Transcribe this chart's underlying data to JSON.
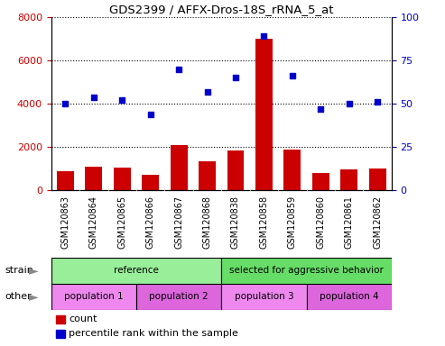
{
  "title": "GDS2399 / AFFX-Dros-18S_rRNA_5_at",
  "samples": [
    "GSM120863",
    "GSM120864",
    "GSM120865",
    "GSM120866",
    "GSM120867",
    "GSM120868",
    "GSM120838",
    "GSM120858",
    "GSM120859",
    "GSM120860",
    "GSM120861",
    "GSM120862"
  ],
  "counts": [
    900,
    1100,
    1050,
    700,
    2100,
    1350,
    1850,
    7000,
    1900,
    800,
    950,
    1000
  ],
  "percentiles": [
    50,
    54,
    52,
    44,
    70,
    57,
    65,
    89,
    66,
    47,
    50,
    51
  ],
  "ylim_left": [
    0,
    8000
  ],
  "ylim_right": [
    0,
    100
  ],
  "yticks_left": [
    0,
    2000,
    4000,
    6000,
    8000
  ],
  "yticks_right": [
    0,
    25,
    50,
    75,
    100
  ],
  "bar_color": "#cc0000",
  "dot_color": "#0000cc",
  "strain_labels": [
    {
      "text": "reference",
      "start": 0,
      "end": 6,
      "color": "#99ee99"
    },
    {
      "text": "selected for aggressive behavior",
      "start": 6,
      "end": 12,
      "color": "#66dd66"
    }
  ],
  "other_labels": [
    {
      "text": "population 1",
      "start": 0,
      "end": 3,
      "color": "#ee88ee"
    },
    {
      "text": "population 2",
      "start": 3,
      "end": 6,
      "color": "#dd66dd"
    },
    {
      "text": "population 3",
      "start": 6,
      "end": 9,
      "color": "#ee88ee"
    },
    {
      "text": "population 4",
      "start": 9,
      "end": 12,
      "color": "#dd66dd"
    }
  ],
  "strain_row_label": "strain",
  "other_row_label": "other",
  "legend_count_label": "count",
  "legend_pct_label": "percentile rank within the sample",
  "tick_label_color_left": "#cc0000",
  "tick_label_color_right": "#0000cc",
  "xticklabel_bg": "#cccccc",
  "arrow_color": "#888888"
}
